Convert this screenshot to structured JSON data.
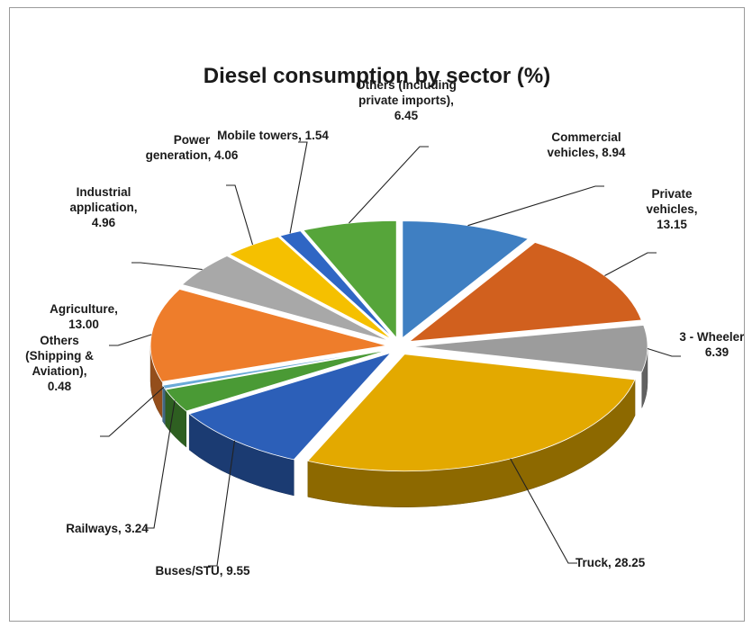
{
  "chart_data": {
    "type": "pie",
    "title": "Diesel consumption by sector  (%)",
    "slices": [
      {
        "name": "Commercial vehicles",
        "value": 8.94,
        "color": "#3f7fc2",
        "label_lines": [
          "Commercial",
          "vehicles, 8.94"
        ]
      },
      {
        "name": "Private vehicles",
        "value": 13.15,
        "color": "#d1601e",
        "label_lines": [
          "Private",
          "vehicles,",
          "13.15"
        ]
      },
      {
        "name": "3 - Wheelers",
        "value": 6.39,
        "color": "#9c9c9c",
        "label_lines": [
          "3 - Wheelers,",
          "6.39"
        ]
      },
      {
        "name": "Truck",
        "value": 28.25,
        "color": "#e3a900",
        "label_lines": [
          "Truck, 28.25"
        ]
      },
      {
        "name": "Buses/STU",
        "value": 9.55,
        "color": "#2c5fb8",
        "label_lines": [
          "Buses/STU, 9.55"
        ]
      },
      {
        "name": "Railways",
        "value": 3.24,
        "color": "#4a9a35",
        "label_lines": [
          "Railways, 3.24"
        ]
      },
      {
        "name": "Others (Shipping & Aviation)",
        "value": 0.48,
        "color": "#6aaad8",
        "label_lines": [
          "Others",
          "(Shipping &",
          "Aviation),",
          "0.48"
        ]
      },
      {
        "name": "Agriculture",
        "value": 13.0,
        "color": "#ee7d2b",
        "label_lines": [
          "Agriculture,",
          "13.00"
        ]
      },
      {
        "name": "Industrial application",
        "value": 4.96,
        "color": "#a8a8a8",
        "label_lines": [
          "Industrial",
          "application,",
          "4.96"
        ]
      },
      {
        "name": "Power generation",
        "value": 4.06,
        "color": "#f5c000",
        "label_lines": [
          "Power",
          "generation, 4.06"
        ]
      },
      {
        "name": "Mobile towers",
        "value": 1.54,
        "color": "#2f66c4",
        "label_lines": [
          "Mobile towers, 1.54"
        ]
      },
      {
        "name": "Others (Including private imports)",
        "value": 6.45,
        "color": "#56a53a",
        "label_lines": [
          "Others (Including",
          "private imports),",
          "6.45"
        ]
      }
    ]
  }
}
